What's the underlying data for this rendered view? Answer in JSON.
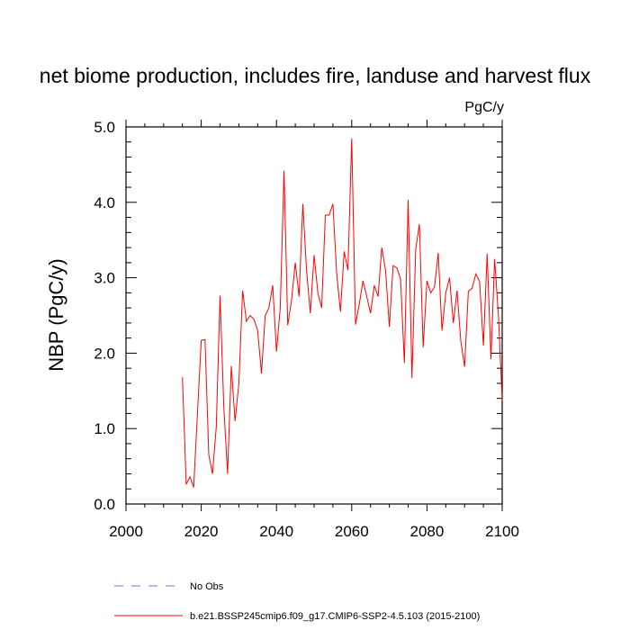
{
  "chart_data": {
    "type": "line",
    "title": "net biome production, includes fire, landuse and harvest flux",
    "units": "PgC/y",
    "xlabel": "",
    "ylabel": "NBP  (PgC/y)",
    "xlim": [
      2000,
      2100
    ],
    "ylim": [
      0,
      5
    ],
    "xticks": [
      2000,
      2020,
      2040,
      2060,
      2080,
      2100
    ],
    "xtick_labels": [
      "2000",
      "2020",
      "2040",
      "2060",
      "2080",
      "2100"
    ],
    "yticks": [
      0,
      1,
      2,
      3,
      4,
      5
    ],
    "ytick_labels": [
      "0.0",
      "1.0",
      "2.0",
      "3.0",
      "4.0",
      "5.0"
    ],
    "legend": [
      {
        "label": "No Obs",
        "style": "dashed",
        "color": "#6f6fe8"
      },
      {
        "label": "b.e21.BSSP245cmip6.f09_g17.CMIP6-SSP2-4.5.103 (2015-2100)",
        "style": "solid",
        "color": "#ff0000"
      }
    ],
    "series": [
      {
        "name": "b.e21.BSSP245cmip6.f09_g17.CMIP6-SSP2-4.5.103 (2015-2100)",
        "color": "#ff0000",
        "x": [
          2015,
          2016,
          2017,
          2018,
          2019,
          2020,
          2021,
          2022,
          2023,
          2024,
          2025,
          2026,
          2027,
          2028,
          2029,
          2030,
          2031,
          2032,
          2033,
          2034,
          2035,
          2036,
          2037,
          2038,
          2039,
          2040,
          2041,
          2042,
          2043,
          2044,
          2045,
          2046,
          2047,
          2048,
          2049,
          2050,
          2051,
          2052,
          2053,
          2054,
          2055,
          2056,
          2057,
          2058,
          2059,
          2060,
          2061,
          2062,
          2063,
          2064,
          2065,
          2066,
          2067,
          2068,
          2069,
          2070,
          2071,
          2072,
          2073,
          2074,
          2075,
          2076,
          2077,
          2078,
          2079,
          2080,
          2081,
          2082,
          2083,
          2084,
          2085,
          2086,
          2087,
          2088,
          2089,
          2090,
          2091,
          2092,
          2093,
          2094,
          2095,
          2096,
          2097,
          2098,
          2099,
          2100
        ],
        "values": [
          1.68,
          0.26,
          0.36,
          0.22,
          1.2,
          2.17,
          2.18,
          0.65,
          0.4,
          1.02,
          2.76,
          1.28,
          0.4,
          1.83,
          1.1,
          1.6,
          2.83,
          2.42,
          2.5,
          2.45,
          2.3,
          1.73,
          2.5,
          2.6,
          2.9,
          2.02,
          2.6,
          4.42,
          2.37,
          2.7,
          3.2,
          2.75,
          3.98,
          3.1,
          2.53,
          3.3,
          2.8,
          2.6,
          3.83,
          3.83,
          3.98,
          3.05,
          2.55,
          3.35,
          3.1,
          4.85,
          2.38,
          2.65,
          2.96,
          2.75,
          2.53,
          2.9,
          2.75,
          3.4,
          3.1,
          2.35,
          3.16,
          3.13,
          2.98,
          1.87,
          4.03,
          1.67,
          3.38,
          3.71,
          2.08,
          2.96,
          2.8,
          2.88,
          3.33,
          2.3,
          2.8,
          3.0,
          2.4,
          2.83,
          2.16,
          1.82,
          2.82,
          2.86,
          3.05,
          2.95,
          2.1,
          3.32,
          1.92,
          3.25,
          2.5,
          1.37
        ]
      }
    ]
  }
}
